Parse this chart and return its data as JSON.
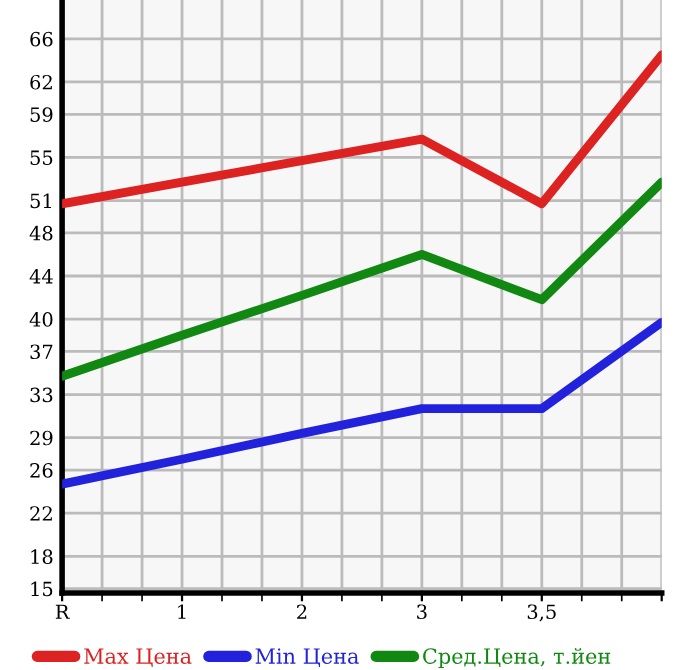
{
  "chart_data": {
    "type": "line",
    "categories": [
      "R",
      "1",
      "2",
      "3",
      "3,5",
      null
    ],
    "series": [
      {
        "name": "Max Цена",
        "color": "#dd2222",
        "values": [
          50.7,
          52.7,
          54.7,
          56.7,
          50.7,
          64.5
        ]
      },
      {
        "name": "Min Цена",
        "color": "#2222dd",
        "values": [
          24.7,
          27.0,
          29.4,
          31.7,
          31.7,
          39.7
        ]
      },
      {
        "name": "Сред.Цена, т.йен",
        "color": "#118811",
        "values": [
          34.7,
          38.5,
          42.2,
          46.0,
          41.8,
          52.7
        ]
      }
    ],
    "ylim": [
      14.6,
      69.6
    ],
    "yticks": [
      15,
      18,
      22,
      26,
      29,
      33,
      37,
      40,
      44,
      48,
      51,
      55,
      59,
      62,
      66
    ],
    "grid": true,
    "legend": "bottom",
    "marker": "none",
    "line_style": "solid"
  }
}
